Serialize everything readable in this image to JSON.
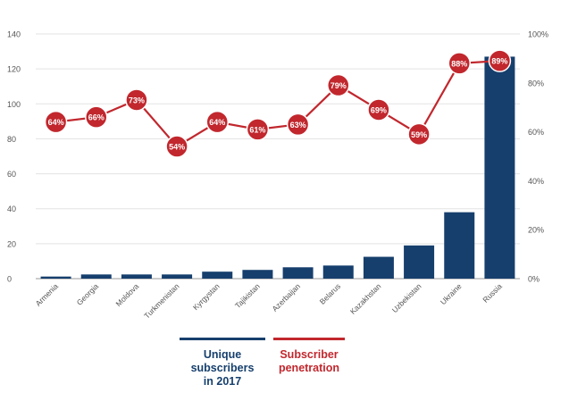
{
  "chart_data": {
    "type": "bar",
    "categories": [
      "Armenia",
      "Georgia",
      "Moldova",
      "Turkmenistan",
      "Kyrgystan",
      "Tajikistan",
      "Azerbaijan",
      "Belarus",
      "Kazakhstan",
      "Uzbekistan",
      "Ukraine",
      "Russia"
    ],
    "series": [
      {
        "name": "Unique subscribers in 2017",
        "type": "bar",
        "axis": "left",
        "color": "#163f6d",
        "values": [
          1.2,
          2.4,
          2.4,
          2.4,
          4,
          5,
          6.5,
          7.5,
          12.5,
          19,
          38,
          127
        ]
      },
      {
        "name": "Subscriber penetration",
        "type": "line",
        "axis": "right",
        "color": "#c1272d",
        "values": [
          64,
          66,
          73,
          54,
          64,
          61,
          63,
          79,
          69,
          59,
          88,
          89
        ],
        "labels": [
          "64%",
          "66%",
          "73%",
          "54%",
          "64%",
          "61%",
          "63%",
          "79%",
          "69%",
          "59%",
          "88%",
          "89%"
        ]
      }
    ],
    "y_left": {
      "ylim": [
        0,
        140
      ],
      "ticks": [
        0,
        20,
        40,
        60,
        80,
        100,
        120,
        140
      ]
    },
    "y_right": {
      "ylim": [
        0,
        100
      ],
      "ticks": [
        0,
        20,
        40,
        60,
        80,
        100
      ],
      "tick_labels": [
        "0%",
        "20%",
        "40%",
        "60%",
        "80%",
        "100%"
      ]
    },
    "grid": "horizontal",
    "legend_position": "bottom"
  },
  "legend": {
    "items": [
      {
        "label_lines": [
          "Unique",
          "subscribers",
          "in 2017"
        ],
        "color": "#163f6d"
      },
      {
        "label_lines": [
          "Subscriber",
          "penetration"
        ],
        "color": "#c1272d"
      }
    ]
  }
}
